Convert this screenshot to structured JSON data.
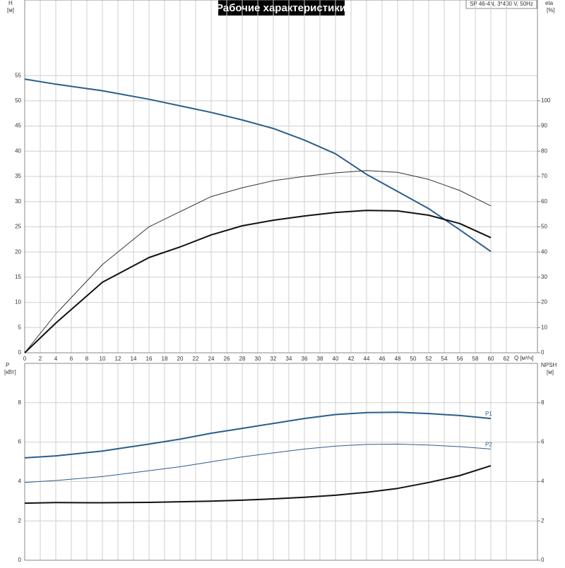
{
  "chart_data": [
    {
      "type": "line",
      "title": "Рабочие характеристики",
      "model": "SP 46-4N, 3*400 V, 50Hz",
      "ylabel": "H",
      "ylabel_unit": "[м]",
      "y2label": "eta",
      "y2label_unit": "[%]",
      "xlabel": "Q [м³/ч]",
      "x": [
        0,
        4,
        10,
        16,
        20,
        24,
        28,
        32,
        36,
        40,
        44,
        48,
        52,
        56,
        60
      ],
      "series": [
        {
          "color": "#2b5d8c",
          "linewidth": 2,
          "values": [
            54.3,
            53.3,
            52,
            50.3,
            49,
            47.7,
            46.2,
            44.5,
            42.2,
            39.5,
            35.4,
            32,
            28.6,
            24.4,
            20.1
          ]
        },
        {
          "color": "#333333",
          "linewidth": 1,
          "axis": "y2",
          "values": [
            0,
            15.4,
            35,
            50,
            56,
            62,
            65.5,
            68.3,
            70,
            71.4,
            72.3,
            71.6,
            68.8,
            64.4,
            58.3
          ]
        },
        {
          "color": "#111111",
          "linewidth": 2,
          "axis": "y2",
          "values": [
            0,
            11.8,
            28,
            37.8,
            42,
            46.8,
            50.4,
            52.6,
            54.3,
            55.7,
            56.5,
            56.3,
            54.6,
            51.3,
            45.7
          ]
        }
      ],
      "xlim": [
        0,
        66
      ],
      "xticks": [
        0,
        2,
        4,
        6,
        8,
        10,
        12,
        14,
        16,
        18,
        20,
        22,
        24,
        26,
        28,
        30,
        32,
        34,
        36,
        38,
        40,
        42,
        44,
        46,
        48,
        50,
        52,
        54,
        56,
        58,
        60,
        62
      ],
      "ylim": [
        0,
        70
      ],
      "yticks": [
        0,
        5,
        10,
        15,
        20,
        25,
        30,
        35,
        40,
        45,
        50,
        55
      ],
      "y2lim": [
        0,
        140
      ],
      "y2ticks": [
        0,
        10,
        20,
        30,
        40,
        50,
        60,
        70,
        80,
        90,
        100
      ],
      "grid": true
    },
    {
      "type": "line",
      "ylabel": "P",
      "ylabel_unit": "[кВт]",
      "y2label": "NPSH",
      "y2label_unit": "[м]",
      "x": [
        0,
        4,
        10,
        16,
        20,
        24,
        28,
        32,
        36,
        40,
        44,
        48,
        52,
        56,
        60
      ],
      "series": [
        {
          "name": "P1",
          "color": "#2b5d8c",
          "linewidth": 2,
          "values": [
            5.2,
            5.3,
            5.55,
            5.9,
            6.15,
            6.45,
            6.7,
            6.95,
            7.2,
            7.4,
            7.5,
            7.52,
            7.45,
            7.35,
            7.2
          ]
        },
        {
          "name": "P2",
          "color": "#2b5d8c",
          "linewidth": 1,
          "values": [
            3.95,
            4.05,
            4.25,
            4.55,
            4.75,
            5.0,
            5.25,
            5.45,
            5.65,
            5.8,
            5.88,
            5.9,
            5.85,
            5.77,
            5.65
          ]
        },
        {
          "color": "#111111",
          "linewidth": 2,
          "axis": "y2",
          "values": [
            2.9,
            2.93,
            2.92,
            2.94,
            2.97,
            3.0,
            3.05,
            3.12,
            3.2,
            3.3,
            3.45,
            3.65,
            3.95,
            4.3,
            4.8
          ]
        }
      ],
      "xlim": [
        0,
        66
      ],
      "xticks": [
        0,
        2,
        4,
        6,
        8,
        10,
        12,
        14,
        16,
        18,
        20,
        22,
        24,
        26,
        28,
        30,
        32,
        34,
        36,
        38,
        40,
        42,
        44,
        46,
        48,
        50,
        52,
        54,
        56,
        58,
        60,
        62
      ],
      "ylim": [
        0,
        10
      ],
      "yticks": [
        0,
        2,
        4,
        6,
        8
      ],
      "y2lim": [
        0,
        10
      ],
      "y2ticks": [
        0,
        2,
        4,
        6,
        8
      ],
      "grid": true
    }
  ]
}
